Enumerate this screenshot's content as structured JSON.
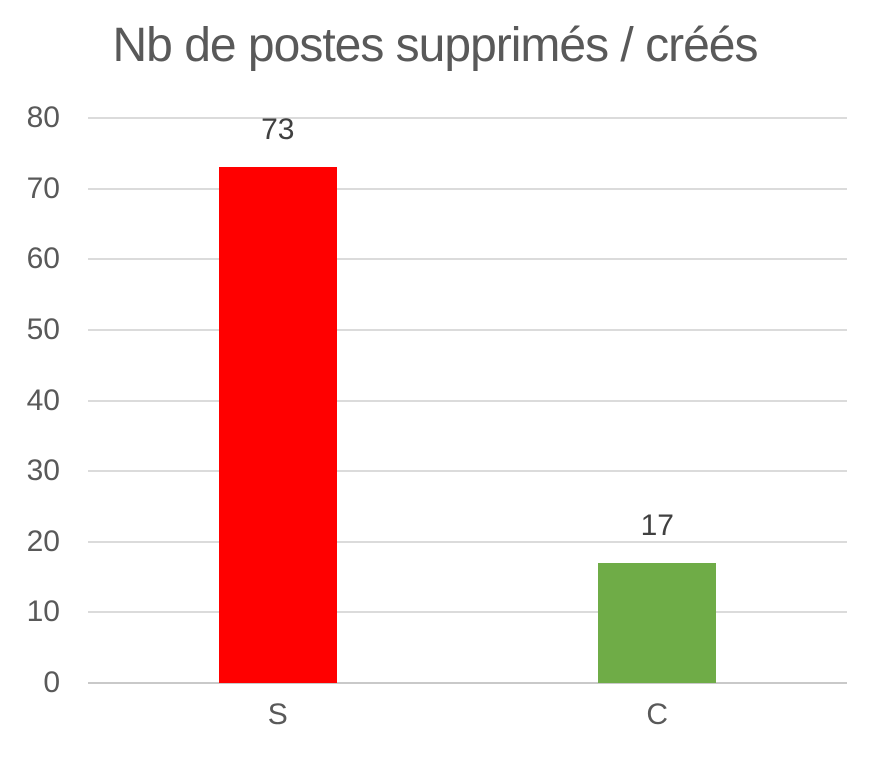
{
  "chart_data": {
    "type": "bar",
    "title": "Nb de postes supprimés / créés",
    "categories": [
      "S",
      "C"
    ],
    "values": [
      73,
      17
    ],
    "data_labels": [
      "73",
      "17"
    ],
    "bar_colors": [
      "#FF0000",
      "#6FAC47"
    ],
    "yticks": [
      0,
      10,
      20,
      30,
      40,
      50,
      60,
      70,
      80
    ],
    "ylim": [
      0,
      80
    ],
    "xlabel": "",
    "ylabel": "",
    "grid": true,
    "legend": false,
    "colors": {
      "title_text": "#595959",
      "axis_tick_text": "#595959",
      "data_label_text": "#404040",
      "gridline": "#DBDBDB",
      "axis_line": "#C9C9C9",
      "background": "#FFFFFF"
    }
  }
}
